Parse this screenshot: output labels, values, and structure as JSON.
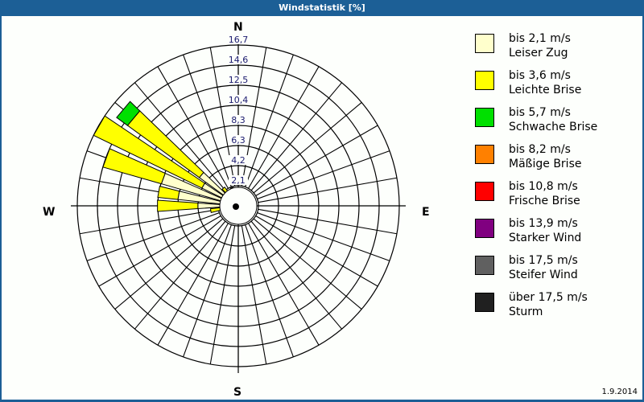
{
  "window": {
    "title": "Windstatistik [%]"
  },
  "compass": {
    "n": "N",
    "e": "E",
    "s": "S",
    "w": "W"
  },
  "footer": {
    "date": "1.9.2014"
  },
  "legend": [
    {
      "range": "bis 2,1 m/s",
      "name": "Leiser Zug",
      "color": "#ffffcc"
    },
    {
      "range": "bis 3,6 m/s",
      "name": "Leichte Brise",
      "color": "#ffff00"
    },
    {
      "range": "bis 5,7 m/s",
      "name": "Schwache Brise",
      "color": "#00e000"
    },
    {
      "range": "bis 8,2 m/s",
      "name": "Mäßige Brise",
      "color": "#ff8000"
    },
    {
      "range": "bis 10,8 m/s",
      "name": "Frische Brise",
      "color": "#ff0000"
    },
    {
      "range": "bis 13,9 m/s",
      "name": "Starker Wind",
      "color": "#800080"
    },
    {
      "range": "bis 17,5 m/s",
      "name": "Steifer Wind",
      "color": "#606060"
    },
    {
      "range": "über 17,5 m/s",
      "name": "Sturm",
      "color": "#202020"
    }
  ],
  "chart_data": {
    "type": "polar-bar (wind rose)",
    "title": "Windstatistik [%]",
    "radial_ticks": [
      "2,1",
      "4,2",
      "6,3",
      "8,3",
      "10,4",
      "12,5",
      "14,6",
      "16,7"
    ],
    "radial_max": 16.7,
    "sector_width_deg": 10,
    "directions_deg": [
      240,
      250,
      260,
      270,
      280,
      290,
      300,
      310,
      320,
      330,
      340,
      350
    ],
    "series": [
      {
        "name": "bis 2,1 m/s Leiser Zug",
        "values": [
          0.6,
          1.0,
          1.4,
          4.2,
          6.3,
          8.3,
          4.2,
          5.0,
          1.2,
          1.0,
          0.8,
          0.6
        ]
      },
      {
        "name": "bis 3,6 m/s Leichte Brise",
        "values": [
          0.3,
          0.5,
          1.5,
          4.2,
          2.1,
          6.3,
          12.5,
          9.2,
          1.2,
          0.8,
          1.2,
          0.8
        ]
      },
      {
        "name": "bis 5,7 m/s Schwache Brise",
        "values": [
          0,
          0,
          0,
          0,
          0,
          0,
          0,
          1.4,
          0,
          0,
          0,
          0
        ]
      },
      {
        "name": "bis 8,2 m/s Mäßige Brise",
        "values": [
          0,
          0,
          0,
          0,
          0,
          0,
          0,
          0,
          0,
          0,
          0,
          0
        ]
      },
      {
        "name": "bis 10,8 m/s Frische Brise",
        "values": [
          0,
          0,
          0,
          0,
          0,
          0,
          0,
          0,
          0,
          0,
          0,
          0
        ]
      },
      {
        "name": "bis 13,9 m/s Starker Wind",
        "values": [
          0,
          0,
          0,
          0,
          0,
          0,
          0,
          0,
          0,
          0,
          0,
          0
        ]
      },
      {
        "name": "bis 17,5 m/s Steifer Wind",
        "values": [
          0,
          0,
          0,
          0,
          0,
          0,
          0,
          0,
          0,
          0,
          0,
          0
        ]
      },
      {
        "name": "über 17,5 m/s Sturm",
        "values": [
          0,
          0,
          0,
          0,
          0,
          0,
          0,
          0,
          0,
          0,
          0,
          0
        ]
      }
    ],
    "legend_position": "right",
    "grid": true
  }
}
